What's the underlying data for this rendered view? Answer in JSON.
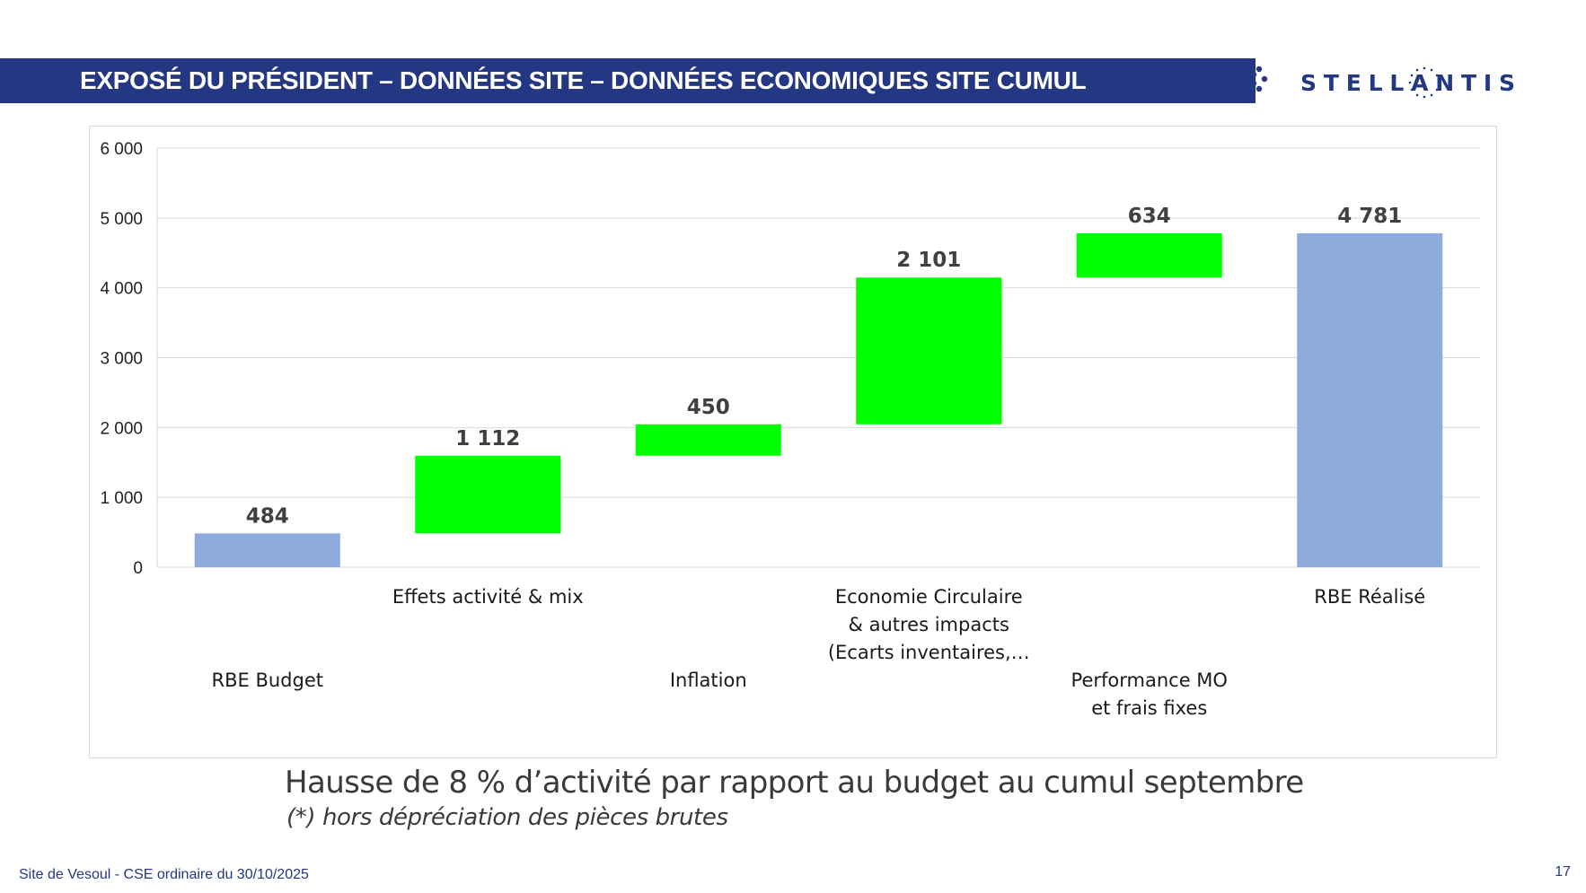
{
  "header": {
    "title": "EXPOSÉ DU PRÉSIDENT – DONNÉES SITE – DONNÉES ECONOMIQUES SITE CUMUL",
    "bar_color": "#243782",
    "logo_text": "STELLANTIS"
  },
  "chart_data": {
    "type": "bar",
    "subtype": "waterfall",
    "categories": [
      "RBE Budget",
      "Effets activité & mix",
      "Inflation",
      "Economie Circulaire & autres impacts (Ecarts inventaires,…",
      "Performance MO et frais fixes",
      "RBE Réalisé"
    ],
    "category_lines": [
      [
        "RBE Budget"
      ],
      [
        "Effets activité & mix"
      ],
      [
        "Inflation"
      ],
      [
        "Economie Circulaire",
        "& autres impacts",
        "(Ecarts inventaires,…"
      ],
      [
        "Performance MO",
        "et frais fixes"
      ],
      [
        "RBE Réalisé"
      ]
    ],
    "label_rows": [
      "lower",
      "upper",
      "lower",
      "upper",
      "lower",
      "upper"
    ],
    "bars": [
      {
        "base": 0,
        "value": 484,
        "label": "484",
        "kind": "total"
      },
      {
        "base": 484,
        "value": 1112,
        "label": "1 112",
        "kind": "increase"
      },
      {
        "base": 1596,
        "value": 450,
        "label": "450",
        "kind": "increase"
      },
      {
        "base": 2046,
        "value": 2101,
        "label": "2 101",
        "kind": "increase"
      },
      {
        "base": 4147,
        "value": 634,
        "label": "634",
        "kind": "increase"
      },
      {
        "base": 0,
        "value": 4781,
        "label": "4 781",
        "kind": "total"
      }
    ],
    "ylim": [
      0,
      6000
    ],
    "yticks": [
      0,
      1000,
      2000,
      3000,
      4000,
      5000,
      6000
    ],
    "ytick_labels": [
      "0",
      "1 000",
      "2 000",
      "3 000",
      "4 000",
      "5 000",
      "6 000"
    ],
    "grid": true,
    "colors": {
      "total": "#8FAADC",
      "increase": "#00FF00",
      "grid": "#d9d9d9"
    }
  },
  "summary": "Hausse de 8 % d’activité par rapport au budget au cumul septembre",
  "footnote": "(*) hors dépréciation des pièces brutes",
  "footer": {
    "left": "Site de Vesoul - CSE ordinaire du 30/10/2025",
    "page": "17"
  }
}
